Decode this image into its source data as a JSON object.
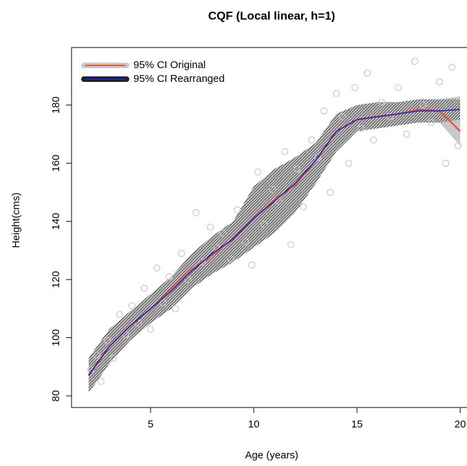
{
  "chart_data": {
    "type": "line",
    "title": "CQF (Local linear, h=1)",
    "x_label": "Age (years)",
    "y_label": "Height(cms)",
    "xlim": [
      1.17,
      20.63
    ],
    "ylim": [
      76,
      199.8
    ],
    "xticks": [
      5,
      10,
      15,
      20
    ],
    "yticks": [
      80,
      100,
      120,
      140,
      160,
      180
    ],
    "legend": "top-left",
    "x": [
      2,
      3,
      4,
      5,
      6,
      7,
      8,
      9,
      10,
      11,
      12,
      13,
      14,
      15,
      16,
      17,
      18,
      19,
      20
    ],
    "series": [
      {
        "name": "95% CI Original",
        "color": "#e8553f",
        "band_color": "#c8c8c8",
        "values": [
          87,
          97,
          104,
          110,
          116.5,
          123.5,
          128.5,
          134,
          141,
          147.5,
          152.5,
          161,
          171,
          175,
          176,
          177,
          178.5,
          178,
          171
        ],
        "lower": [
          81,
          91,
          99,
          105,
          110,
          117,
          122,
          126,
          131,
          136,
          143,
          153,
          164,
          171,
          172,
          173,
          174,
          174,
          166
        ],
        "upper": [
          93,
          103,
          109,
          115,
          121,
          129,
          135,
          140,
          152,
          158,
          162,
          167,
          177,
          180,
          181,
          181,
          182,
          182,
          183
        ]
      },
      {
        "name": "95% CI Rearranged",
        "color": "#2020c0",
        "band_color": "#222222",
        "values": [
          87,
          97,
          104,
          110,
          116,
          123,
          129,
          134,
          141,
          147,
          153,
          161,
          171,
          175,
          176,
          177,
          178,
          178,
          178.5
        ],
        "lower": [
          81,
          91,
          99,
          105,
          110,
          117,
          122,
          126,
          131,
          136,
          143,
          153,
          164,
          171,
          172,
          173,
          174,
          174,
          175
        ],
        "upper": [
          93,
          103,
          109,
          115,
          121,
          129,
          135,
          140,
          152,
          158,
          162,
          167,
          177,
          180,
          181,
          181,
          182,
          182,
          182
        ]
      }
    ],
    "points": {
      "color": "#c8c8c8",
      "x": [
        2.1,
        2.4,
        2.6,
        2.9,
        3.2,
        3.5,
        3.8,
        4.1,
        4.4,
        4.7,
        5.0,
        5.3,
        5.6,
        5.9,
        6.2,
        6.5,
        6.8,
        7.2,
        7.5,
        7.9,
        8.2,
        8.5,
        8.9,
        9.2,
        9.6,
        9.9,
        10.2,
        10.5,
        10.9,
        11.2,
        11.5,
        11.8,
        12.1,
        12.4,
        12.8,
        13.1,
        13.4,
        13.7,
        14.0,
        14.3,
        14.6,
        14.9,
        15.2,
        15.5,
        15.8,
        16.2,
        16.6,
        17.0,
        17.4,
        17.8,
        18.2,
        18.6,
        19.0,
        19.3,
        19.6,
        19.9
      ],
      "y": [
        89,
        94,
        85,
        99,
        93,
        108,
        101,
        111,
        105,
        117,
        103,
        124,
        112,
        121,
        110,
        129,
        120,
        143,
        126,
        138,
        131,
        136,
        127,
        144,
        133,
        125,
        157,
        139,
        151,
        147,
        164,
        132,
        158,
        145,
        168,
        162,
        178,
        150,
        184,
        176,
        160,
        186,
        172,
        191,
        168,
        181,
        176,
        186,
        170,
        195,
        180,
        174,
        188,
        160,
        193,
        166
      ]
    }
  }
}
